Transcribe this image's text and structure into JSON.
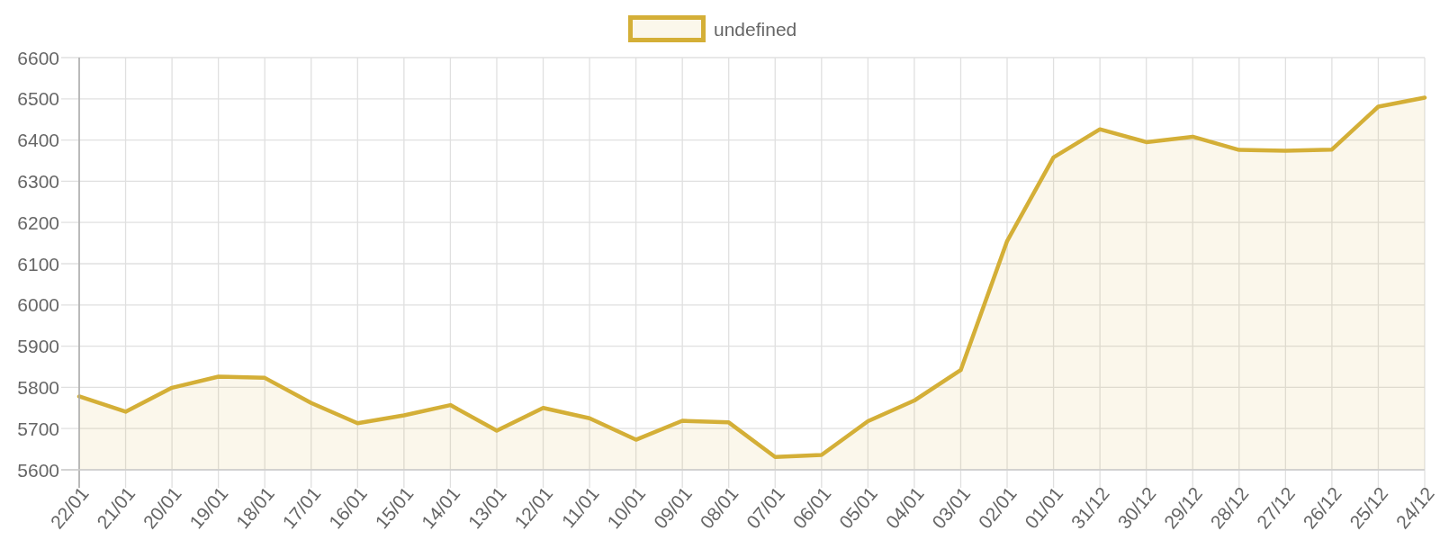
{
  "chart_data": {
    "type": "area",
    "categories": [
      "22/01",
      "21/01",
      "20/01",
      "19/01",
      "18/01",
      "17/01",
      "16/01",
      "15/01",
      "14/01",
      "13/01",
      "12/01",
      "11/01",
      "10/01",
      "09/01",
      "08/01",
      "07/01",
      "06/01",
      "05/01",
      "04/01",
      "03/01",
      "02/01",
      "01/01",
      "31/12",
      "30/12",
      "29/12",
      "28/12",
      "27/12",
      "26/12",
      "25/12",
      "24/12"
    ],
    "series": [
      {
        "name": "undefined",
        "color": "#d4af37",
        "values": [
          5778,
          5741,
          5799,
          5826,
          5823,
          5762,
          5713,
          5732,
          5757,
          5695,
          5750,
          5725,
          5673,
          5719,
          5715,
          5631,
          5636,
          5718,
          5768,
          5842,
          6155,
          6358,
          6426,
          6395,
          6408,
          6376,
          6374,
          6377,
          6481,
          6503
        ]
      }
    ],
    "ylim": [
      5600,
      6600
    ],
    "yticks": [
      5600,
      5700,
      5800,
      5900,
      6000,
      6100,
      6200,
      6300,
      6400,
      6500,
      6600
    ],
    "grid": true,
    "legend": "top"
  }
}
